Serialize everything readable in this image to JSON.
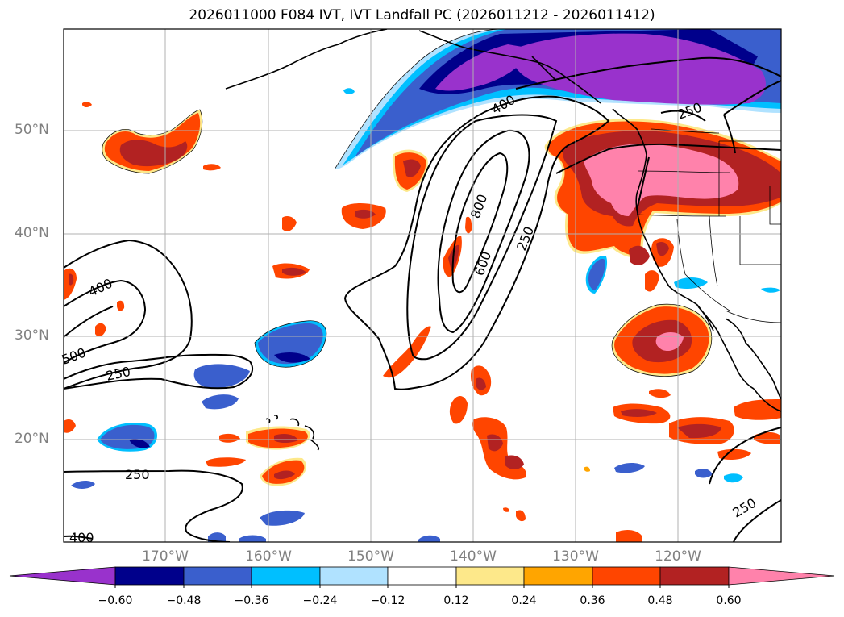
{
  "title": "2026011000 F084 IVT, IVT Landfall PC (2026011212 - 2026011412)",
  "lat_labels": [
    "50°N",
    "40°N",
    "30°N",
    "20°N"
  ],
  "lon_labels": [
    "170°W",
    "160°W",
    "150°W",
    "140°W",
    "130°W",
    "120°W"
  ],
  "contour_labels": [
    "400",
    "800",
    "600",
    "250",
    "400",
    "500",
    "250",
    "250",
    "250",
    "400",
    "250"
  ],
  "colorbar": {
    "tick_labels": [
      "−0.60",
      "−0.48",
      "−0.36",
      "−0.24",
      "−0.12",
      "0.12",
      "0.24",
      "0.36",
      "0.48",
      "0.60"
    ],
    "colors": [
      "#9932cc",
      "#00008b",
      "#3a5fcd",
      "#00bfff",
      "#b0e2ff",
      "#ffffff",
      "#fde88a",
      "#ffa500",
      "#ff4500",
      "#b22222",
      "#ff82ab"
    ]
  },
  "colors": {
    "pos_light": "#fde88a",
    "pos_orange": "#ffa500",
    "pos_red_orange": "#ff4500",
    "pos_firebrick": "#b22222",
    "pos_pink": "#ff82ab",
    "neg_light": "#b0e2ff",
    "neg_sky": "#00bfff",
    "neg_royal": "#3a5fcd",
    "neg_navy": "#00008b",
    "neg_purple": "#9932cc"
  }
}
